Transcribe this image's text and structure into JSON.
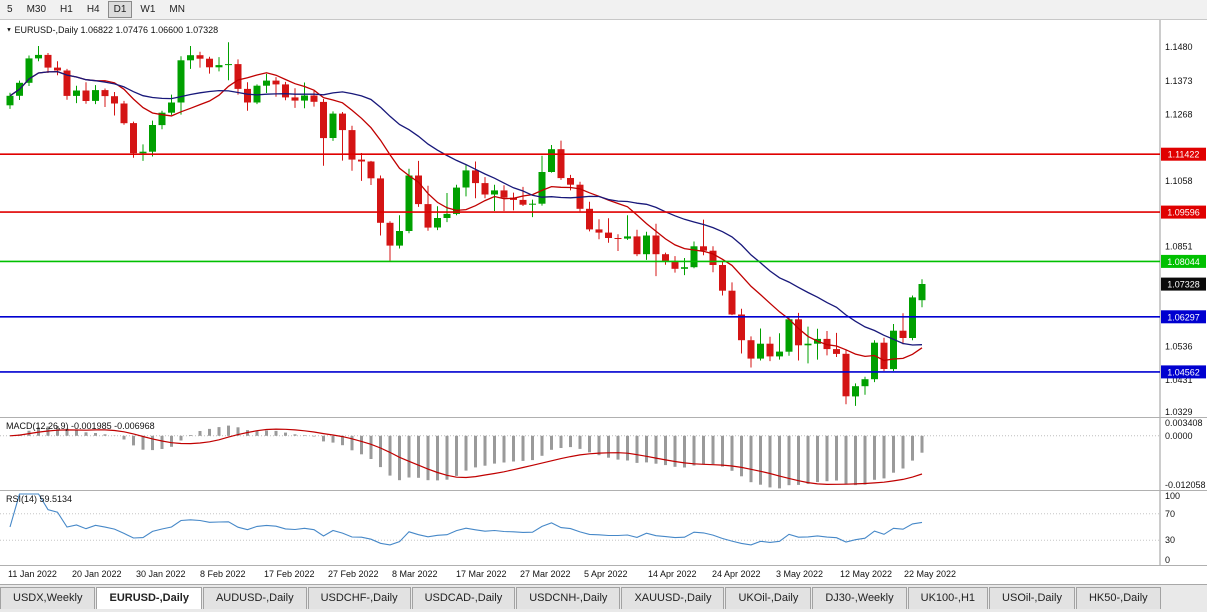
{
  "toolbar": {
    "timeframes": [
      {
        "label": "5",
        "active": false
      },
      {
        "label": "M30",
        "active": false
      },
      {
        "label": "H1",
        "active": false
      },
      {
        "label": "H4",
        "active": false
      },
      {
        "label": "D1",
        "active": true
      },
      {
        "label": "W1",
        "active": false
      },
      {
        "label": "MN",
        "active": false
      }
    ]
  },
  "chart": {
    "symbol_label": "EURUSD-,Daily",
    "ohlc_text": "1.06822 1.07476 1.06600 1.07328"
  },
  "macd_panel": {
    "label": "MACD(12,26,9)",
    "values_text": "-0.001985 -0.006968",
    "axis_labels": [
      "0.003408",
      "0.0000",
      "-0.012058"
    ]
  },
  "rsi_panel": {
    "label": "RSI(14)",
    "value_text": "59.5134",
    "axis_labels": [
      "100",
      "70",
      "30",
      "0"
    ]
  },
  "tabs": [
    {
      "label": "USDX,Weekly",
      "active": false
    },
    {
      "label": "EURUSD-,Daily",
      "active": true
    },
    {
      "label": "AUDUSD-,Daily",
      "active": false
    },
    {
      "label": "USDCHF-,Daily",
      "active": false
    },
    {
      "label": "USDCAD-,Daily",
      "active": false
    },
    {
      "label": "USDCNH-,Daily",
      "active": false
    },
    {
      "label": "XAUUSD-,Daily",
      "active": false
    },
    {
      "label": "UKOil-,Daily",
      "active": false
    },
    {
      "label": "DJ30-,Weekly",
      "active": false
    },
    {
      "label": "UK100-,H1",
      "active": false
    },
    {
      "label": "USOil-,Daily",
      "active": false
    },
    {
      "label": "HK50-,Daily",
      "active": false
    }
  ],
  "chart_data": {
    "type": "candlestick",
    "title": "EURUSD-,Daily",
    "current_bar": {
      "open": 1.06822,
      "high": 1.07476,
      "low": 1.066,
      "close": 1.07328
    },
    "price_range": {
      "top": 1.1565,
      "bottom": 1.0314
    },
    "y_axis_ticks": [
      "1.1480",
      "1.1373",
      "1.1268",
      "1.1058",
      "1.0851",
      "1.0536",
      "1.0431",
      "1.0329"
    ],
    "levels": [
      {
        "price": 1.11422,
        "label": "1.11422",
        "color": "#e00000",
        "type": "resistance"
      },
      {
        "price": 1.09596,
        "label": "1.09596",
        "color": "#e00000",
        "type": "resistance"
      },
      {
        "price": 1.08044,
        "label": "1.08044",
        "color": "#00c000",
        "type": "resistance"
      },
      {
        "price": 1.06297,
        "label": "1.06297",
        "color": "#0000d0",
        "type": "support"
      },
      {
        "price": 1.04562,
        "label": "1.04562",
        "color": "#0000d0",
        "type": "support"
      }
    ],
    "current_price": {
      "value": 1.07328,
      "label": "1.07328",
      "badge_color": "#0a0a0a"
    },
    "up_color": "#00a000",
    "down_color": "#d41414",
    "moving_averages": [
      {
        "period": 10,
        "type": "sma",
        "color": "#c00000"
      },
      {
        "period": 21,
        "type": "sma",
        "color": "#18187a"
      }
    ],
    "x_labels": [
      "11 Jan 2022",
      "20 Jan 2022",
      "30 Jan 2022",
      "8 Feb 2022",
      "17 Feb 2022",
      "27 Feb 2022",
      "8 Mar 2022",
      "17 Mar 2022",
      "27 Mar 2022",
      "5 Apr 2022",
      "14 Apr 2022",
      "24 Apr 2022",
      "3 May 2022",
      "12 May 2022",
      "22 May 2022"
    ],
    "candles_ohlc": [
      [
        1.1296,
        1.1336,
        1.1285,
        1.1326
      ],
      [
        1.1326,
        1.1374,
        1.1313,
        1.1367
      ],
      [
        1.1367,
        1.1453,
        1.1357,
        1.1444
      ],
      [
        1.1444,
        1.1483,
        1.1435,
        1.1455
      ],
      [
        1.1455,
        1.1461,
        1.1398,
        1.1415
      ],
      [
        1.1415,
        1.1435,
        1.1391,
        1.1406
      ],
      [
        1.1406,
        1.1411,
        1.1314,
        1.1326
      ],
      [
        1.1326,
        1.1358,
        1.1303,
        1.1343
      ],
      [
        1.1343,
        1.1369,
        1.1301,
        1.131
      ],
      [
        1.131,
        1.136,
        1.13,
        1.1344
      ],
      [
        1.1344,
        1.1349,
        1.1291,
        1.1325
      ],
      [
        1.1325,
        1.1338,
        1.1264,
        1.1302
      ],
      [
        1.1302,
        1.131,
        1.1235,
        1.124
      ],
      [
        1.124,
        1.1245,
        1.1131,
        1.1145
      ],
      [
        1.1145,
        1.1173,
        1.1121,
        1.115
      ],
      [
        1.115,
        1.1248,
        1.1135,
        1.1234
      ],
      [
        1.1234,
        1.1279,
        1.1221,
        1.1273
      ],
      [
        1.1273,
        1.133,
        1.1266,
        1.1305
      ],
      [
        1.1305,
        1.1451,
        1.1267,
        1.1438
      ],
      [
        1.1438,
        1.1483,
        1.1411,
        1.1454
      ],
      [
        1.1454,
        1.1465,
        1.1415,
        1.1443
      ],
      [
        1.1443,
        1.1449,
        1.1396,
        1.1416
      ],
      [
        1.1416,
        1.1448,
        1.1403,
        1.1423
      ],
      [
        1.1423,
        1.1495,
        1.1375,
        1.1426
      ],
      [
        1.1426,
        1.1441,
        1.133,
        1.1348
      ],
      [
        1.1348,
        1.1369,
        1.1279,
        1.1305
      ],
      [
        1.1305,
        1.1362,
        1.13,
        1.1358
      ],
      [
        1.1358,
        1.1395,
        1.1335,
        1.1374
      ],
      [
        1.1374,
        1.1385,
        1.1323,
        1.1362
      ],
      [
        1.1362,
        1.137,
        1.1312,
        1.1321
      ],
      [
        1.1321,
        1.135,
        1.1288,
        1.1311
      ],
      [
        1.1311,
        1.1368,
        1.1287,
        1.1327
      ],
      [
        1.1327,
        1.1342,
        1.1292,
        1.1307
      ],
      [
        1.1307,
        1.1316,
        1.1106,
        1.1193
      ],
      [
        1.1193,
        1.1277,
        1.1184,
        1.127
      ],
      [
        1.127,
        1.1275,
        1.1122,
        1.1218
      ],
      [
        1.1218,
        1.1232,
        1.109,
        1.1125
      ],
      [
        1.1125,
        1.1146,
        1.1058,
        1.1119
      ],
      [
        1.1119,
        1.1121,
        1.1045,
        1.1066
      ],
      [
        1.1066,
        1.1075,
        1.0886,
        1.0926
      ],
      [
        1.0926,
        1.0931,
        1.0806,
        1.0854
      ],
      [
        1.0854,
        1.095,
        1.0845,
        1.09
      ],
      [
        1.09,
        1.1096,
        1.0893,
        1.1075
      ],
      [
        1.1075,
        1.1121,
        1.0976,
        1.0985
      ],
      [
        1.0985,
        1.1043,
        1.0901,
        1.0911
      ],
      [
        1.0911,
        1.0978,
        1.0903,
        1.0941
      ],
      [
        1.0941,
        1.102,
        1.0928,
        1.0954
      ],
      [
        1.0954,
        1.1046,
        1.095,
        1.1037
      ],
      [
        1.1037,
        1.1109,
        1.1009,
        1.1091
      ],
      [
        1.1091,
        1.1119,
        1.1003,
        1.1051
      ],
      [
        1.1051,
        1.107,
        1.1003,
        1.1015
      ],
      [
        1.1015,
        1.1046,
        1.0963,
        1.1028
      ],
      [
        1.1028,
        1.1044,
        1.0963,
        1.1005
      ],
      [
        1.1005,
        1.1021,
        1.0965,
        1.0998
      ],
      [
        1.0998,
        1.1039,
        1.0979,
        1.0983
      ],
      [
        1.0983,
        1.0999,
        1.0944,
        1.0986
      ],
      [
        1.0986,
        1.1137,
        1.098,
        1.1086
      ],
      [
        1.1086,
        1.1171,
        1.1084,
        1.1158
      ],
      [
        1.1158,
        1.1185,
        1.1061,
        1.1067
      ],
      [
        1.1067,
        1.1077,
        1.1028,
        1.1046
      ],
      [
        1.1046,
        1.1055,
        1.0962,
        1.097
      ],
      [
        1.097,
        1.0992,
        1.0899,
        1.0905
      ],
      [
        1.0905,
        1.0937,
        1.0874,
        1.0895
      ],
      [
        1.0895,
        1.094,
        1.0863,
        1.0878
      ],
      [
        1.0878,
        1.089,
        1.0837,
        1.0876
      ],
      [
        1.0876,
        1.095,
        1.0872,
        1.0883
      ],
      [
        1.0883,
        1.0904,
        1.0821,
        1.0827
      ],
      [
        1.0827,
        1.0898,
        1.0809,
        1.0886
      ],
      [
        1.0886,
        1.0923,
        1.0758,
        1.0827
      ],
      [
        1.0827,
        1.0832,
        1.0794,
        1.0806
      ],
      [
        1.0806,
        1.0821,
        1.0769,
        1.0781
      ],
      [
        1.0781,
        1.0815,
        1.0761,
        1.0786
      ],
      [
        1.0786,
        1.0867,
        1.0783,
        1.0852
      ],
      [
        1.0852,
        1.0936,
        1.0824,
        1.0838
      ],
      [
        1.0838,
        1.0852,
        1.077,
        1.0793
      ],
      [
        1.0793,
        1.0803,
        1.0697,
        1.0712
      ],
      [
        1.0712,
        1.0738,
        1.0635,
        1.0637
      ],
      [
        1.0637,
        1.0655,
        1.0514,
        1.0556
      ],
      [
        1.0556,
        1.0568,
        1.047,
        1.0498
      ],
      [
        1.0498,
        1.0593,
        1.0492,
        1.0545
      ],
      [
        1.0545,
        1.0567,
        1.049,
        1.0505
      ],
      [
        1.0505,
        1.0578,
        1.0495,
        1.052
      ],
      [
        1.052,
        1.0632,
        1.0507,
        1.0622
      ],
      [
        1.0622,
        1.0642,
        1.0492,
        1.054
      ],
      [
        1.054,
        1.0599,
        1.0483,
        1.0545
      ],
      [
        1.0545,
        1.0592,
        1.0495,
        1.056
      ],
      [
        1.056,
        1.0585,
        1.0508,
        1.0528
      ],
      [
        1.0528,
        1.0579,
        1.0503,
        1.0513
      ],
      [
        1.0513,
        1.0525,
        1.0354,
        1.0379
      ],
      [
        1.0379,
        1.042,
        1.0349,
        1.0411
      ],
      [
        1.0411,
        1.0441,
        1.0384,
        1.0433
      ],
      [
        1.0433,
        1.0556,
        1.0424,
        1.0548
      ],
      [
        1.0548,
        1.0564,
        1.0459,
        1.0465
      ],
      [
        1.0465,
        1.0607,
        1.0459,
        1.0586
      ],
      [
        1.0586,
        1.0641,
        1.0543,
        1.0563
      ],
      [
        1.0563,
        1.0697,
        1.0556,
        1.0691
      ],
      [
        1.0682,
        1.0748,
        1.066,
        1.0733
      ]
    ],
    "macd": {
      "fast": 12,
      "slow": 26,
      "signal": 9,
      "histogram_color": "#9a9a9a",
      "signal_color": "#c00000",
      "range": {
        "top": 0.0042,
        "bottom": -0.0128
      }
    },
    "rsi": {
      "period": 14,
      "color": "#4688c8",
      "levels": [
        70,
        30
      ],
      "range": [
        0,
        100
      ]
    }
  }
}
